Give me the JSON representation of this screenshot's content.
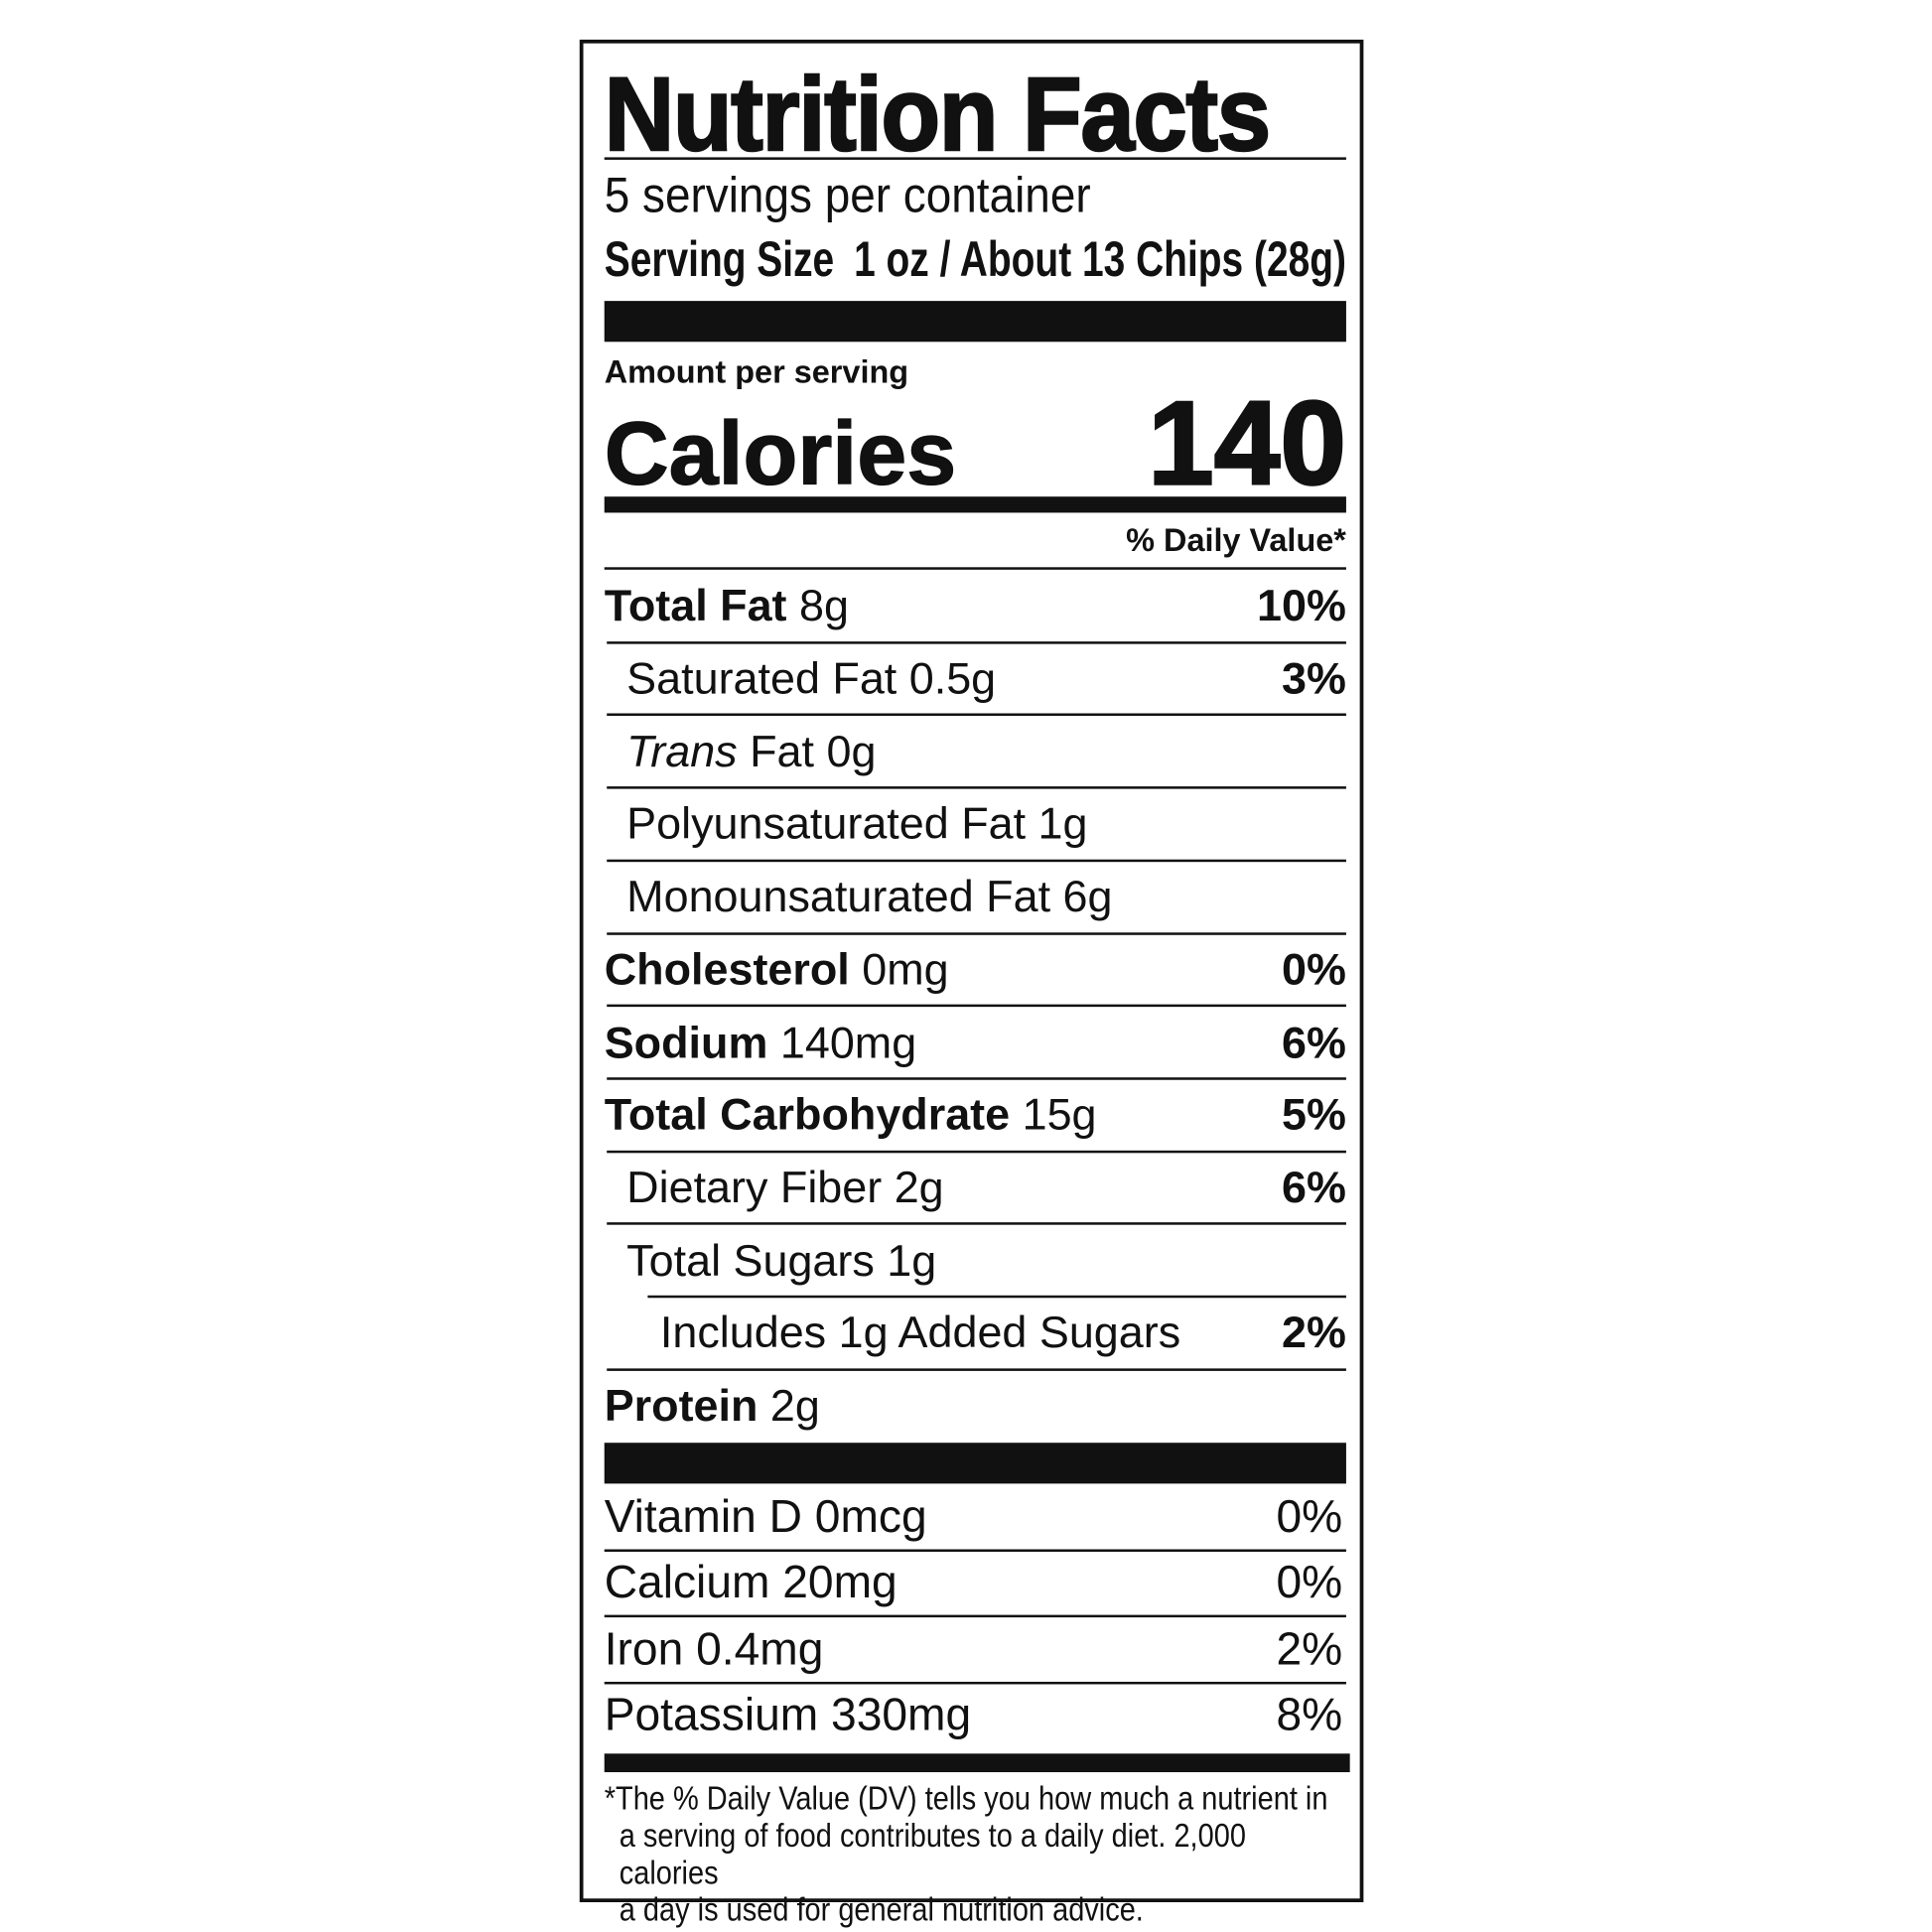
{
  "title": "Nutrition Facts",
  "servings_per_container": "5 servings per container",
  "serving_size": {
    "label": "Serving Size",
    "value": "1 oz / About 13 Chips (28g)"
  },
  "amount_per_serving": "Amount per serving",
  "calories": {
    "label": "Calories",
    "value": "140"
  },
  "daily_value_header": "% Daily Value*",
  "nutrients": [
    {
      "name": "Total Fat",
      "amount": "8g",
      "dv": "10%"
    },
    {
      "name": "Saturated Fat 0.5g",
      "dv": "3%"
    },
    {
      "name_italic": "Trans",
      "name": " Fat 0g",
      "dv": ""
    },
    {
      "name": "Polyunsaturated Fat 1g",
      "dv": ""
    },
    {
      "name": "Monounsaturated Fat 6g",
      "dv": ""
    },
    {
      "name": "Cholesterol",
      "amount": "0mg",
      "dv": "0%"
    },
    {
      "name": "Sodium",
      "amount": "140mg",
      "dv": "6%"
    },
    {
      "name": "Total Carbohydrate",
      "amount": "15g",
      "dv": "5%"
    },
    {
      "name": "Dietary Fiber 2g",
      "dv": "6%"
    },
    {
      "name": "Total Sugars 1g",
      "dv": ""
    },
    {
      "name": "Includes 1g Added Sugars",
      "dv": "2%"
    },
    {
      "name": "Protein",
      "amount": "2g",
      "dv": ""
    }
  ],
  "vitamins": [
    {
      "name": "Vitamin D 0mcg",
      "dv": "0%"
    },
    {
      "name": "Calcium 20mg",
      "dv": "0%"
    },
    {
      "name": "Iron 0.4mg",
      "dv": "2%"
    },
    {
      "name": "Potassium 330mg",
      "dv": "8%"
    }
  ],
  "footnote": [
    "*The % Daily Value (DV) tells you how much a nutrient in",
    "a serving of food contributes to a daily diet. 2,000 calories",
    "a day is used for general nutrition advice."
  ]
}
